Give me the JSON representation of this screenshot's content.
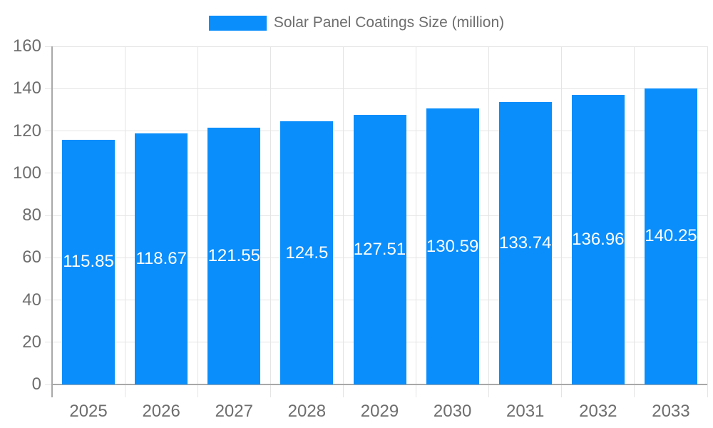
{
  "legend": {
    "label": "Solar Panel Coatings Size (million)"
  },
  "chart_data": {
    "type": "bar",
    "title": "Solar Panel Coatings Size (million)",
    "categories": [
      "2025",
      "2026",
      "2027",
      "2028",
      "2029",
      "2030",
      "2031",
      "2032",
      "2033"
    ],
    "values": [
      115.85,
      118.67,
      121.55,
      124.5,
      127.51,
      130.59,
      133.74,
      136.96,
      140.25
    ],
    "series": [
      {
        "name": "Solar Panel Coatings Size (million)",
        "values": [
          115.85,
          118.67,
          121.55,
          124.5,
          127.51,
          130.59,
          133.74,
          136.96,
          140.25
        ]
      }
    ],
    "xlabel": "",
    "ylabel": "",
    "ylim": [
      0,
      160
    ],
    "ytick_step": 20,
    "yticks": [
      0,
      20,
      40,
      60,
      80,
      100,
      120,
      140,
      160
    ],
    "grid": true,
    "legend_position": "top-center",
    "value_labels": "inside-center",
    "colors": {
      "bar": "#0A8EFB",
      "value_label": "#FFFFFF",
      "axis_text": "#6E6E6E",
      "grid_line": "#E4E4E4",
      "axis_line": "#A8A8A8"
    }
  }
}
